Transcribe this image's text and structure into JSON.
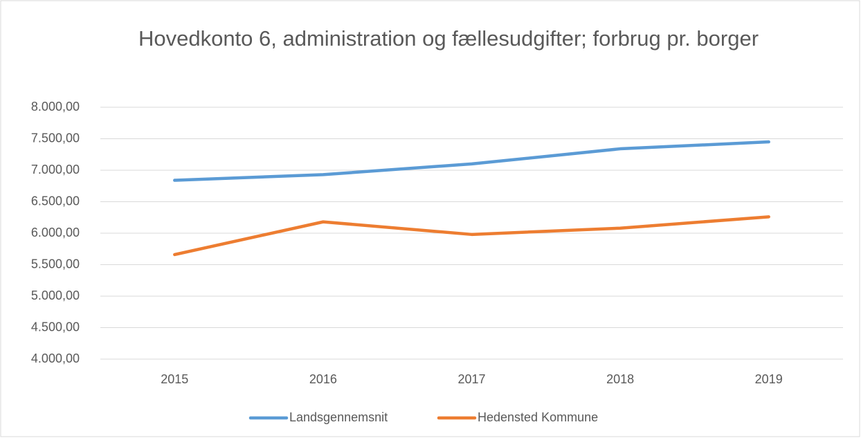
{
  "chart_data": {
    "type": "line",
    "title": "Hovedkonto 6, administration og fællesudgifter; forbrug pr. borger",
    "categories": [
      "2015",
      "2016",
      "2017",
      "2018",
      "2019"
    ],
    "series": [
      {
        "name": "Landsgennemsnit",
        "color": "#5b9bd5",
        "values": [
          6840,
          6930,
          7100,
          7340,
          7450
        ]
      },
      {
        "name": "Hedensted Kommune",
        "color": "#ed7d31",
        "values": [
          5660,
          6180,
          5980,
          6080,
          6260
        ]
      }
    ],
    "ylim": [
      4000,
      8000
    ],
    "yticks": [
      {
        "value": 4000,
        "label": "4.000,00"
      },
      {
        "value": 4500,
        "label": "4.500,00"
      },
      {
        "value": 5000,
        "label": "5.000,00"
      },
      {
        "value": 5500,
        "label": "5.500,00"
      },
      {
        "value": 6000,
        "label": "6.000,00"
      },
      {
        "value": 6500,
        "label": "6.500,00"
      },
      {
        "value": 7000,
        "label": "7.000,00"
      },
      {
        "value": 7500,
        "label": "7.500,00"
      },
      {
        "value": 8000,
        "label": "8.000,00"
      }
    ],
    "grid": true,
    "legend": "bottom"
  }
}
